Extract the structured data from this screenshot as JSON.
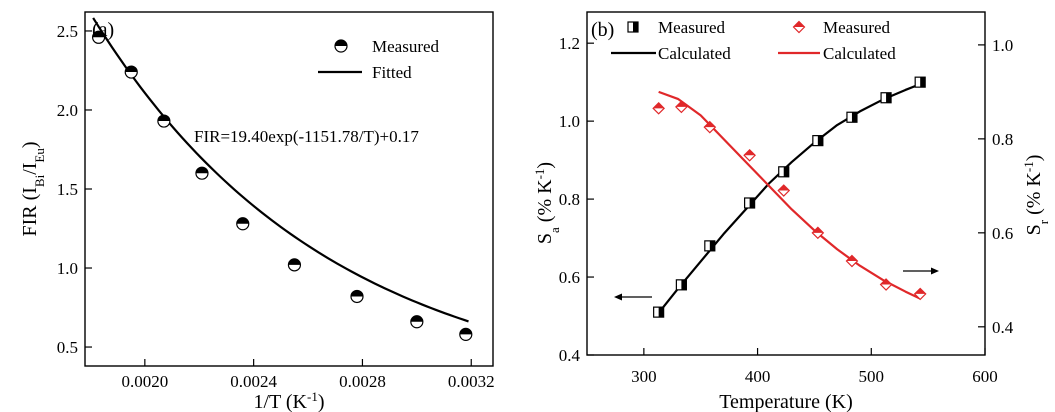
{
  "chart_data": [
    {
      "type": "scatter",
      "panel_label": "(a)",
      "xlabel": "1/T (K",
      "xlabel_sup": "-1",
      "xlabel_end": ")",
      "ylabel_main": "FIR (I",
      "ylabel_sub1": "Bi",
      "ylabel_mid": "/I",
      "ylabel_sub2": "Eu",
      "ylabel_end": ")",
      "xlim": [
        0.00178,
        0.00328
      ],
      "ylim": [
        0.38,
        2.62
      ],
      "xticks": [
        0.002,
        0.0024,
        0.0028,
        0.0032
      ],
      "xtick_labels": [
        "0.0020",
        "0.0024",
        "0.0028",
        "0.0032"
      ],
      "yticks": [
        0.5,
        1.0,
        1.5,
        2.0,
        2.5
      ],
      "ytick_labels": [
        "0.5",
        "1.0",
        "1.5",
        "2.0",
        "2.5"
      ],
      "annotation": "FIR=19.40exp(-1151.78/T)+0.17",
      "legend_position": "top-right",
      "series": [
        {
          "name": "Measured",
          "marker": "half-filled-circle",
          "x": [
            0.00183,
            0.00195,
            0.00207,
            0.00221,
            0.00236,
            0.00255,
            0.00278,
            0.003,
            0.00318
          ],
          "y": [
            2.46,
            2.24,
            1.93,
            1.6,
            1.28,
            1.02,
            0.82,
            0.66,
            0.58
          ]
        },
        {
          "name": "Fitted",
          "style": "line",
          "color": "#000000"
        }
      ]
    },
    {
      "type": "scatter",
      "panel_label": "(b)",
      "xlabel": "Temperature (K)",
      "ylabel_left_main": "S",
      "ylabel_left_sub": "a",
      "ylabel_left_end": " (% K",
      "ylabel_left_sup": "-1",
      "ylabel_left_close": ")",
      "ylabel_right_main": "S",
      "ylabel_right_sub": "r",
      "ylabel_right_end": " (% K",
      "ylabel_right_sup": "-1",
      "ylabel_right_close": ")",
      "xlim": [
        250,
        600
      ],
      "ylim_left": [
        0.4,
        1.28
      ],
      "ylim_right": [
        0.34,
        1.07
      ],
      "xticks": [
        300,
        400,
        500,
        600
      ],
      "xtick_labels": [
        "300",
        "400",
        "500",
        "600"
      ],
      "yticks_left": [
        0.4,
        0.6,
        0.8,
        1.0,
        1.2
      ],
      "ytick_labels_left": [
        "0.4",
        "0.6",
        "0.8",
        "1.0",
        "1.2"
      ],
      "yticks_right": [
        0.4,
        0.6,
        0.8,
        1.0
      ],
      "ytick_labels_right": [
        "0.4",
        "0.6",
        "0.8",
        "1.0"
      ],
      "legend_position": "top",
      "colors": {
        "sa": "#000000",
        "sr": "#e0282a"
      },
      "series": [
        {
          "name": "Measured",
          "axis": "left",
          "marker": "half-filled-square",
          "x": [
            313,
            333,
            358,
            393,
            423,
            453,
            483,
            513,
            543
          ],
          "y": [
            0.51,
            0.58,
            0.68,
            0.79,
            0.87,
            0.95,
            1.01,
            1.06,
            1.1
          ]
        },
        {
          "name": "Calculated",
          "axis": "left",
          "style": "line",
          "x": [
            313,
            330,
            350,
            370,
            390,
            410,
            430,
            450,
            470,
            490,
            510,
            530,
            543
          ],
          "y": [
            0.508,
            0.57,
            0.64,
            0.71,
            0.775,
            0.84,
            0.895,
            0.945,
            0.99,
            1.025,
            1.055,
            1.08,
            1.095
          ]
        },
        {
          "name": "Measured",
          "axis": "right",
          "marker": "half-filled-diamond",
          "x": [
            313,
            333,
            358,
            393,
            423,
            453,
            483,
            513,
            543
          ],
          "y": [
            0.865,
            0.868,
            0.825,
            0.765,
            0.69,
            0.6,
            0.54,
            0.49,
            0.47
          ]
        },
        {
          "name": "Calculated",
          "axis": "right",
          "style": "line",
          "x": [
            313,
            330,
            350,
            370,
            390,
            410,
            430,
            450,
            470,
            490,
            510,
            530,
            543
          ],
          "y": [
            0.9,
            0.885,
            0.85,
            0.8,
            0.75,
            0.7,
            0.65,
            0.605,
            0.565,
            0.53,
            0.5,
            0.475,
            0.46
          ]
        }
      ]
    }
  ]
}
